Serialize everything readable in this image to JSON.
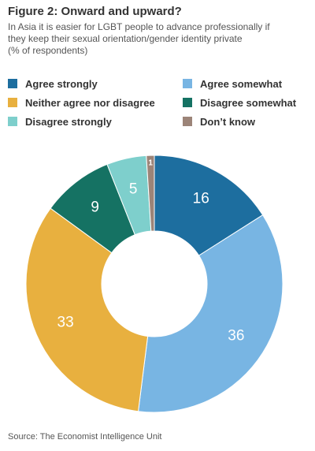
{
  "figure": {
    "title": "Figure 2: Onward and upward?",
    "subtitle_lines": [
      "In Asia it is easier for LGBT people to advance professionally if",
      "they keep their sexual orientation/gender identity private",
      "(% of respondents)"
    ],
    "source": "Source: The Economist Intelligence Unit"
  },
  "legend": [
    {
      "label": "Agree strongly",
      "color": "#1d6e9f"
    },
    {
      "label": "Agree somewhat",
      "color": "#78b5e3"
    },
    {
      "label": "Neither agree nor disagree",
      "color": "#e8b03f"
    },
    {
      "label": "Disagree somewhat",
      "color": "#157263"
    },
    {
      "label": "Disagree strongly",
      "color": "#7ecfcc"
    },
    {
      "label": "Don’t know",
      "color": "#9c8478"
    }
  ],
  "chart_data": {
    "type": "pie",
    "categories": [
      "Agree strongly",
      "Agree somewhat",
      "Neither agree nor disagree",
      "Disagree somewhat",
      "Disagree strongly",
      "Don’t know"
    ],
    "values": [
      16,
      36,
      33,
      9,
      5,
      1
    ],
    "data_labels": [
      "16",
      "36",
      "33",
      "9",
      "5",
      "1"
    ],
    "colors": [
      "#1d6e9f",
      "#78b5e3",
      "#e8b03f",
      "#157263",
      "#7ecfcc",
      "#9c8478"
    ],
    "donut": true,
    "start": "12 o'clock, clockwise",
    "legend_position": "top"
  }
}
